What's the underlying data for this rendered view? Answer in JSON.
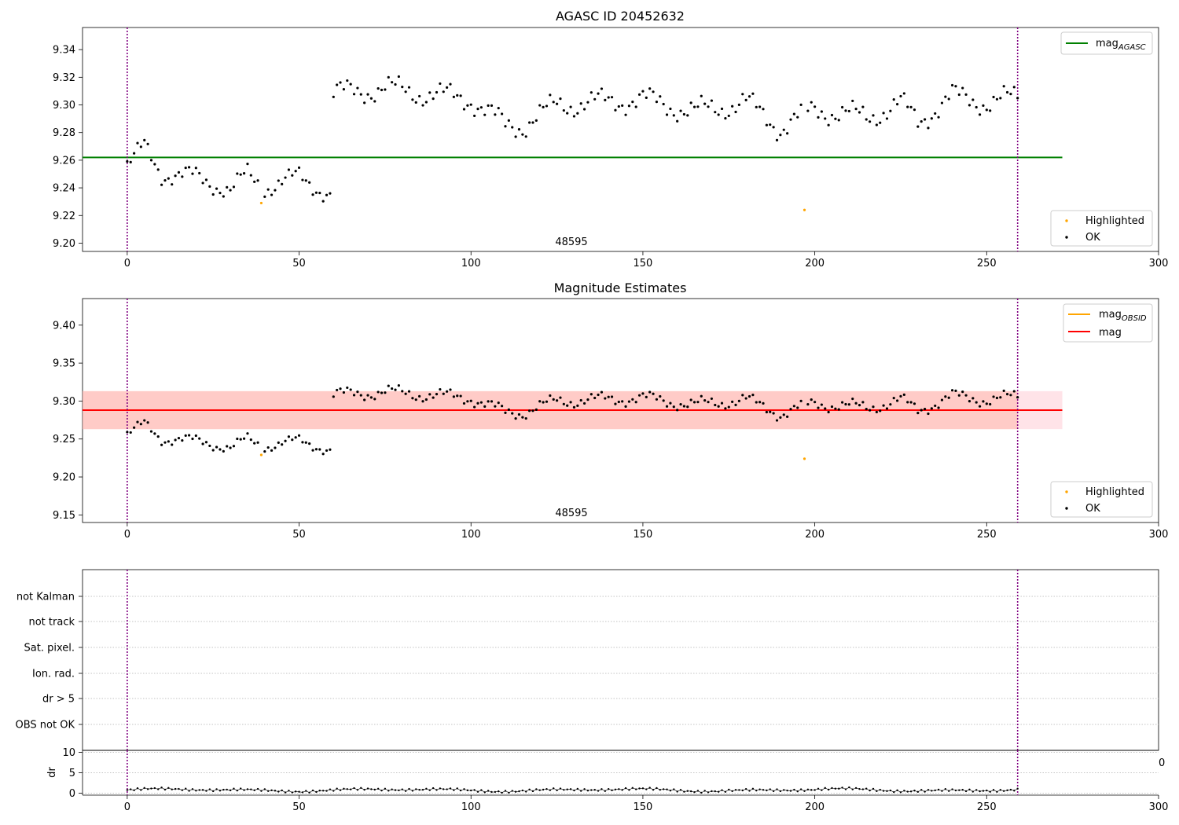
{
  "figure": {
    "title_top": "AGASC ID 20452632",
    "title_mid": "Magnitude Estimates",
    "obsid_label": "48595",
    "clipped_tick_label": "0"
  },
  "legends": {
    "mag_agasc_base": "mag",
    "mag_agasc_sub": "AGASC",
    "mag_obsid_base": "mag",
    "mag_obsid_sub": "OBSID",
    "mag": "mag",
    "highlighted": "Highlighted",
    "ok": "OK"
  },
  "colors": {
    "ok_points": "#000000",
    "highlighted_points": "#ffa500",
    "mag_agasc": "#008000",
    "mag_obsid": "#ffa500",
    "mag": "#ff0000",
    "band_mag": "#ffc0cb",
    "band_obsid": "#ffa07a",
    "obs_boundary": "#800080",
    "grid": "#b0b0b0"
  },
  "chart_data": [
    {
      "type": "scatter",
      "title": "AGASC ID 20452632",
      "xlim": [
        -13,
        300
      ],
      "ylim": [
        9.194,
        9.356
      ],
      "xticks": [
        0,
        50,
        100,
        150,
        200,
        250,
        300
      ],
      "yticks": [
        9.2,
        9.22,
        9.24,
        9.26,
        9.28,
        9.3,
        9.32,
        9.34
      ],
      "hlines": [
        {
          "name": "mag_AGASC",
          "y": 9.262,
          "xmin": -13,
          "xmax": 272
        }
      ],
      "vlines": [
        0,
        259
      ],
      "annotation": {
        "text": "48595",
        "x": 130
      },
      "legend": "top-right + bottom-right",
      "highlighted": [
        {
          "x": 39,
          "y": 9.229
        },
        {
          "x": 197,
          "y": 9.224
        }
      ]
    },
    {
      "type": "scatter",
      "title": "Magnitude Estimates",
      "xlim": [
        -13,
        300
      ],
      "ylim": [
        9.14,
        9.435
      ],
      "xticks": [
        0,
        50,
        100,
        150,
        200,
        250,
        300
      ],
      "yticks": [
        9.15,
        9.2,
        9.25,
        9.3,
        9.35,
        9.4
      ],
      "hlines": [
        {
          "name": "mag_OBSID",
          "y": 9.288,
          "band": [
            9.263,
            9.313
          ],
          "xmin": -13,
          "xmax": 259
        },
        {
          "name": "mag",
          "y": 9.288,
          "band": [
            9.263,
            9.313
          ],
          "xmin": -13,
          "xmax": 272
        }
      ],
      "vlines": [
        0,
        259
      ],
      "annotation": {
        "text": "48595",
        "x": 130
      },
      "legend": "top-right + bottom-right",
      "highlighted": [
        {
          "x": 39,
          "y": 9.229
        },
        {
          "x": 197,
          "y": 9.224
        }
      ]
    },
    {
      "type": "table",
      "rows": [
        "not Kalman",
        "not track",
        "Sat. pixel.",
        "Ion. rad.",
        "dr > 5",
        "OBS not OK"
      ],
      "xlim": [
        -13,
        300
      ],
      "vlines": [
        0,
        259
      ],
      "grid": "dotted horizontal"
    },
    {
      "type": "line",
      "ylabel": "dr",
      "xlim": [
        -13,
        300
      ],
      "ylim": [
        -0.5,
        10.5
      ],
      "xticks": [
        0,
        50,
        100,
        150,
        200,
        250,
        300
      ],
      "yticks": [
        0,
        5,
        10
      ],
      "vlines": [
        0,
        259
      ]
    }
  ]
}
